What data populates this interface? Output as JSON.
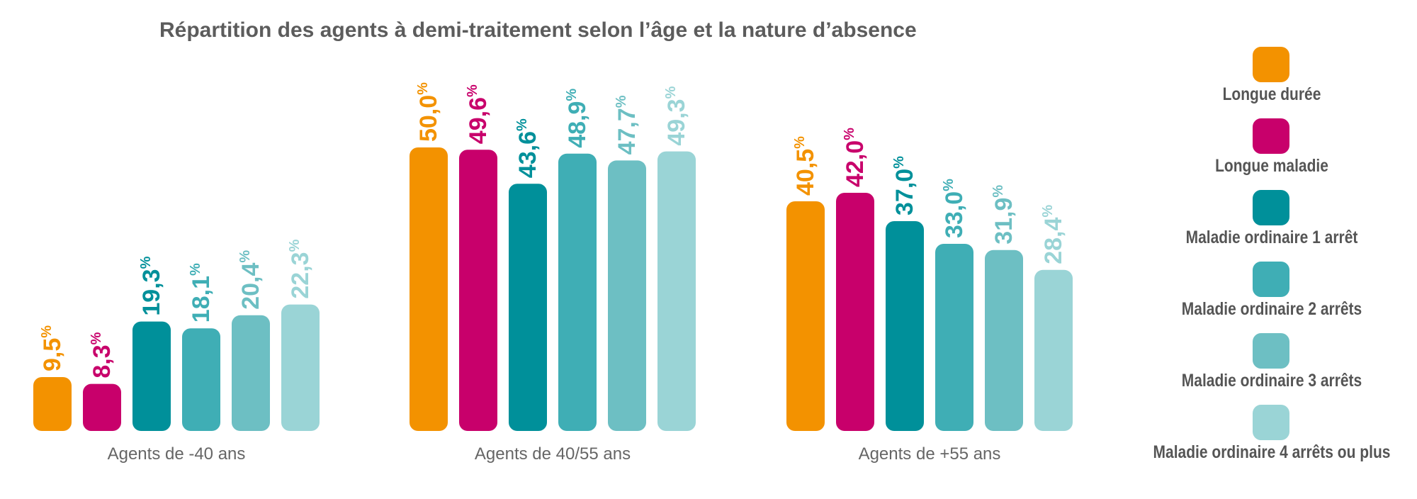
{
  "chart_data": {
    "type": "bar",
    "title": "Répartition des agents à demi-traitement selon l’âge et la nature d’absence",
    "categories": [
      "Agents de -40 ans",
      "Agents de 40/55 ans",
      "Agents de +55 ans"
    ],
    "value_suffix": "%",
    "ylim": [
      0,
      50
    ],
    "series": [
      {
        "name": "Longue durée",
        "color": "#f39200",
        "values": [
          9.5,
          50.0,
          40.5
        ],
        "labels": [
          "9,5",
          "50,0",
          "40,5"
        ]
      },
      {
        "name": "Longue maladie",
        "color": "#c8006b",
        "values": [
          8.3,
          49.6,
          42.0
        ],
        "labels": [
          "8,3",
          "49,6",
          "42,0"
        ]
      },
      {
        "name": "Maladie ordinaire 1 arrêt",
        "color": "#00909a",
        "values": [
          19.3,
          43.6,
          37.0
        ],
        "labels": [
          "19,3",
          "43,6",
          "37,0"
        ]
      },
      {
        "name": "Maladie ordinaire 2 arrêts",
        "color": "#3faeb5",
        "values": [
          18.1,
          48.9,
          33.0
        ],
        "labels": [
          "18,1",
          "48,9",
          "33,0"
        ]
      },
      {
        "name": "Maladie ordinaire 3 arrêts",
        "color": "#6dbfc3",
        "values": [
          20.4,
          47.7,
          31.9
        ],
        "labels": [
          "20,4",
          "47,7",
          "31,9"
        ]
      },
      {
        "name": "Maladie ordinaire 4 arrêts ou plus",
        "color": "#9ad4d6",
        "values": [
          22.3,
          49.3,
          28.4
        ],
        "labels": [
          "22,3",
          "49,3",
          "28,4"
        ]
      }
    ]
  }
}
